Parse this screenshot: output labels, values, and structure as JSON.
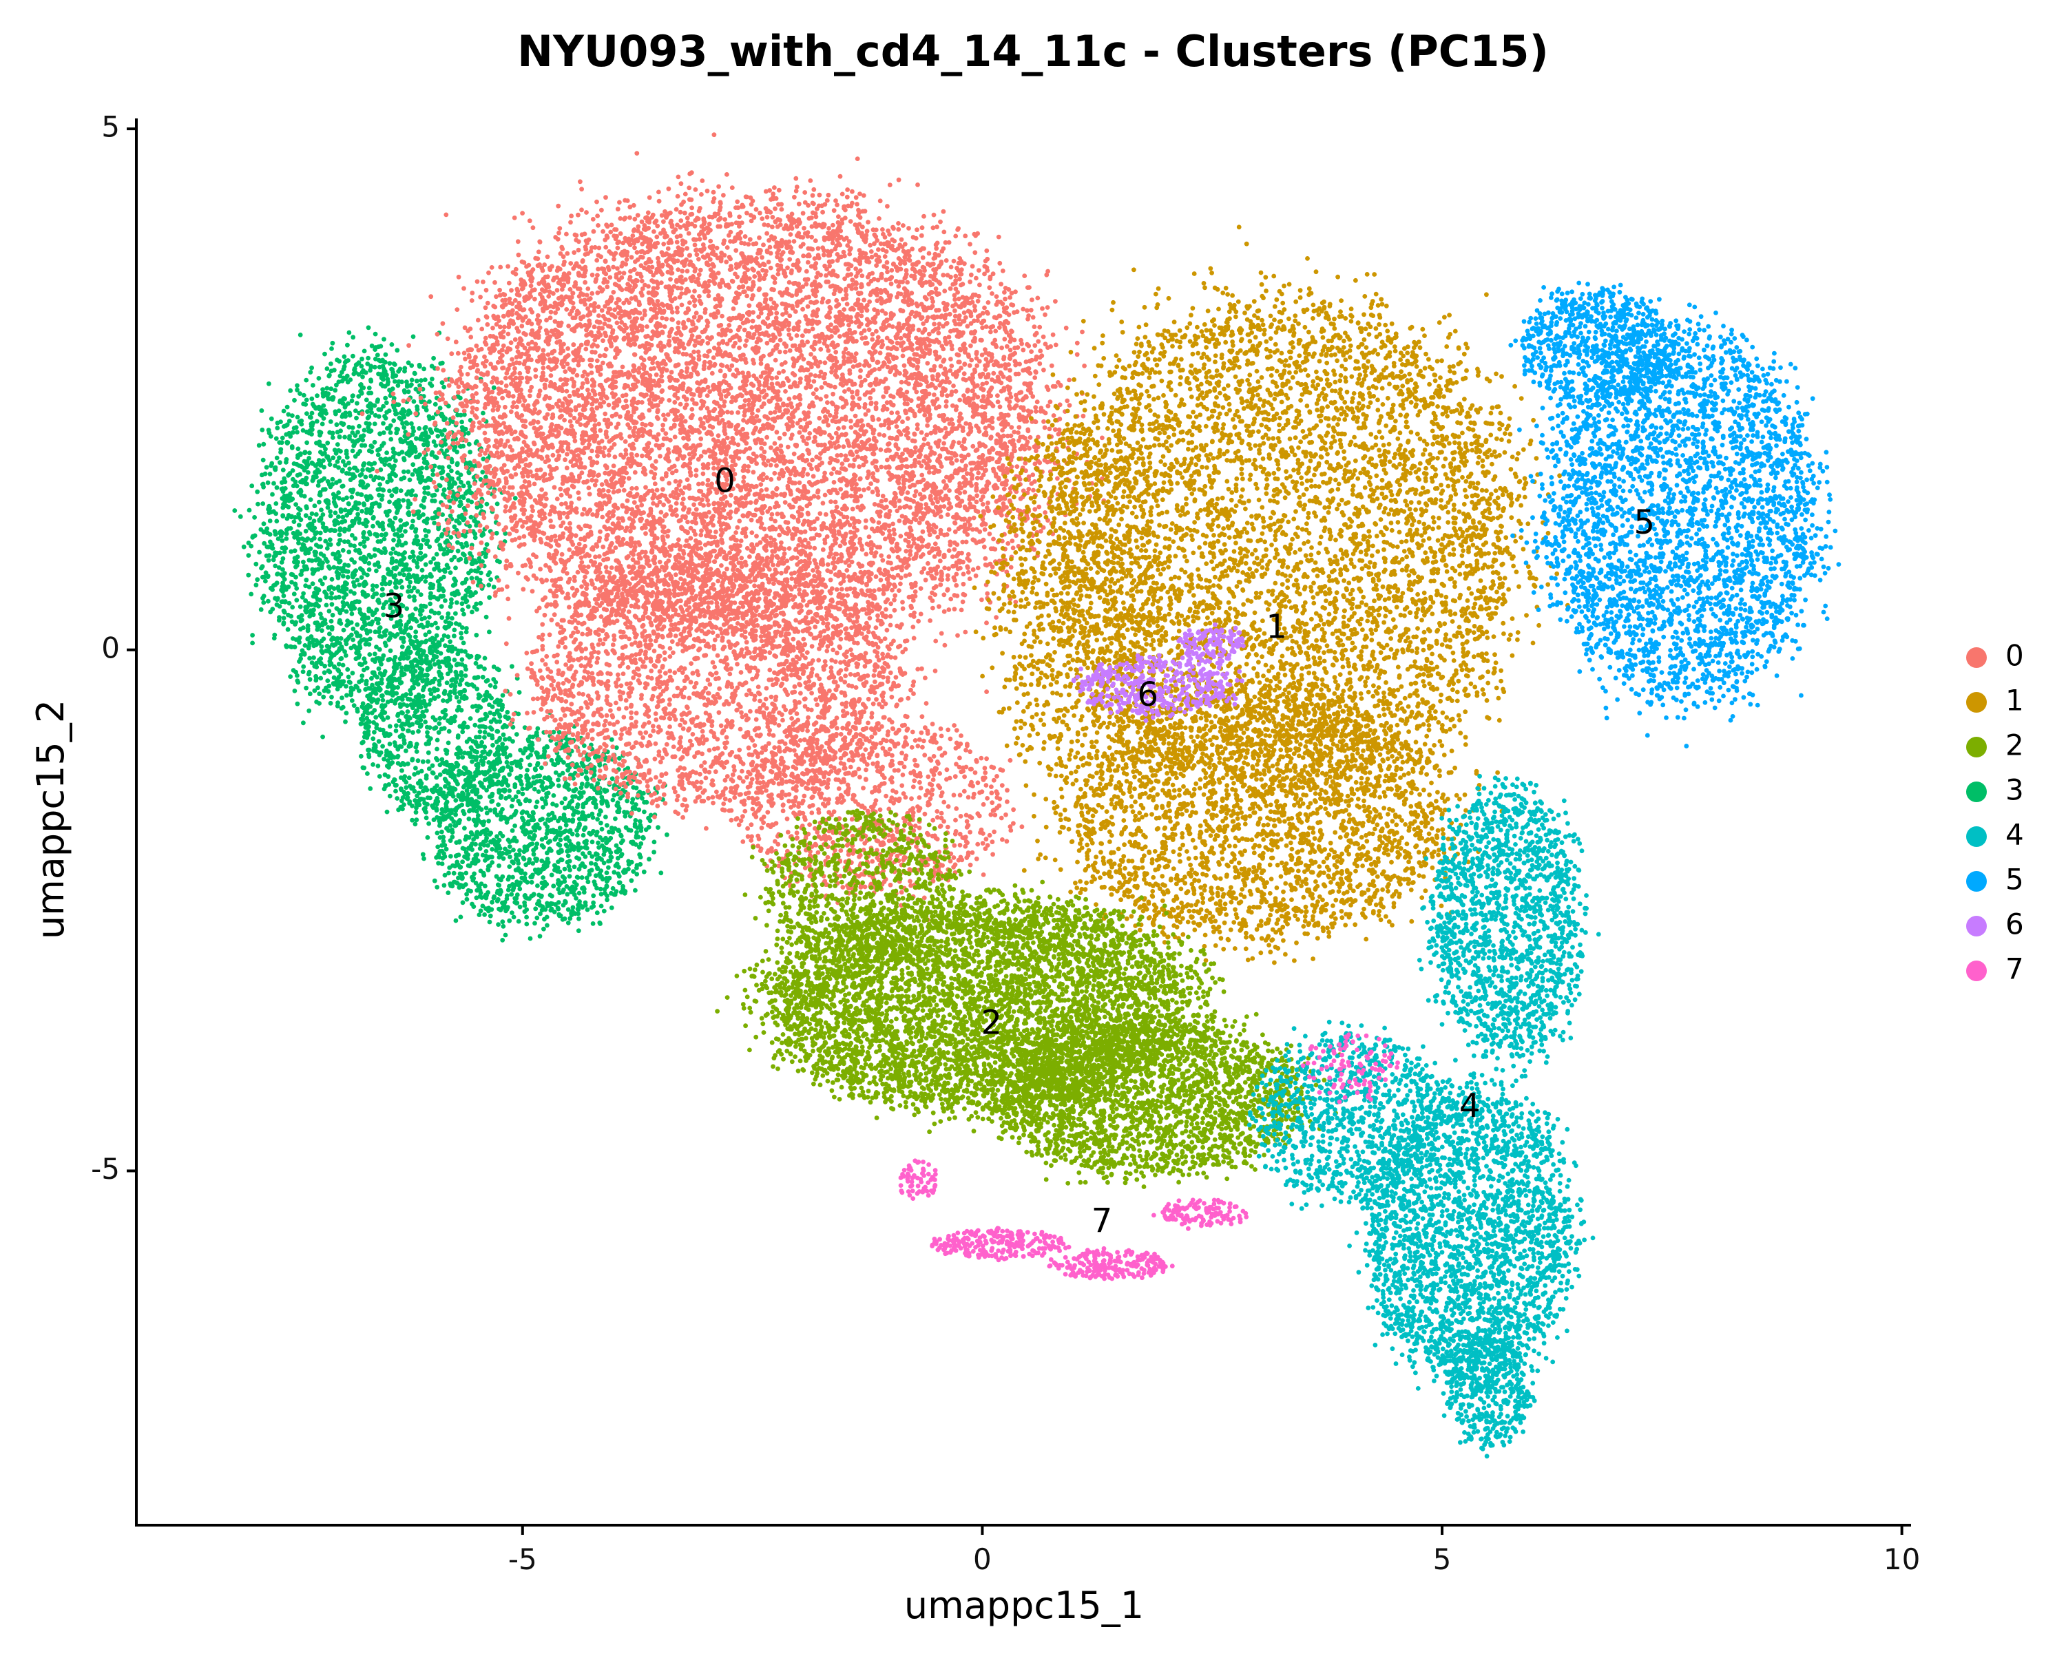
{
  "chart_data": {
    "type": "scatter",
    "title": "NYU093_with_cd4_14_11c - Clusters (PC15)",
    "xlabel": "umappc15_1",
    "ylabel": "umappc15_2",
    "xlim": [
      -9.2,
      10.1
    ],
    "ylim": [
      -8.4,
      5.1
    ],
    "x_ticks": [
      {
        "value": -5,
        "label": "-5"
      },
      {
        "value": 0,
        "label": "0"
      },
      {
        "value": 5,
        "label": "5"
      },
      {
        "value": 10,
        "label": "10"
      }
    ],
    "y_ticks": [
      {
        "value": -5,
        "label": "-5"
      },
      {
        "value": 0,
        "label": "0"
      },
      {
        "value": 5,
        "label": "5"
      }
    ],
    "legend_position": "right",
    "series": [
      {
        "name": "0",
        "color": "#F8766D",
        "label_position": [
          -2.8,
          1.6
        ]
      },
      {
        "name": "1",
        "color": "#CD9600",
        "label_position": [
          3.2,
          0.2
        ]
      },
      {
        "name": "2",
        "color": "#7CAE00",
        "label_position": [
          0.1,
          -3.6
        ]
      },
      {
        "name": "3",
        "color": "#00BE67",
        "label_position": [
          -6.4,
          0.4
        ]
      },
      {
        "name": "4",
        "color": "#00BFC4",
        "label_position": [
          5.3,
          -4.4
        ]
      },
      {
        "name": "5",
        "color": "#00A9FF",
        "label_position": [
          7.2,
          1.2
        ]
      },
      {
        "name": "6",
        "color": "#C77CFF",
        "label_position": [
          1.8,
          -0.45
        ]
      },
      {
        "name": "7",
        "color": "#FF61CC",
        "label_position": [
          1.3,
          -5.5
        ]
      }
    ],
    "clusters": [
      {
        "name": "3",
        "blobs": [
          {
            "cx": -6.6,
            "cy": 1.1,
            "rx": 1.35,
            "ry": 1.9,
            "n": 2600
          },
          {
            "cx": -4.8,
            "cy": -1.7,
            "rx": 1.3,
            "ry": 1.0,
            "n": 1400
          },
          {
            "cx": -5.9,
            "cy": -0.8,
            "rx": 0.9,
            "ry": 0.9,
            "n": 700
          }
        ]
      },
      {
        "name": "0",
        "blobs": [
          {
            "cx": -2.5,
            "cy": 2.2,
            "rx": 3.5,
            "ry": 2.3,
            "n": 9000
          },
          {
            "cx": -2.9,
            "cy": -0.3,
            "rx": 2.2,
            "ry": 1.3,
            "n": 2400
          },
          {
            "cx": -1.2,
            "cy": -1.5,
            "rx": 1.6,
            "ry": 0.9,
            "n": 1000
          }
        ]
      },
      {
        "name": "1",
        "blobs": [
          {
            "cx": 3.3,
            "cy": 1.0,
            "rx": 2.8,
            "ry": 2.6,
            "n": 5500
          },
          {
            "cx": 3.0,
            "cy": -1.6,
            "rx": 2.3,
            "ry": 1.3,
            "n": 2600
          },
          {
            "cx": 1.0,
            "cy": 0.5,
            "rx": 1.0,
            "ry": 1.8,
            "n": 900
          }
        ]
      },
      {
        "name": "2",
        "blobs": [
          {
            "cx": 0.0,
            "cy": -3.4,
            "rx": 2.5,
            "ry": 1.1,
            "n": 5000
          },
          {
            "cx": 1.8,
            "cy": -4.3,
            "rx": 1.8,
            "ry": 0.8,
            "n": 2200
          },
          {
            "cx": -1.3,
            "cy": -2.3,
            "rx": 1.1,
            "ry": 0.8,
            "n": 800
          }
        ]
      },
      {
        "name": "4",
        "blobs": [
          {
            "cx": 5.3,
            "cy": -5.6,
            "rx": 1.2,
            "ry": 1.5,
            "n": 2400
          },
          {
            "cx": 5.7,
            "cy": -2.6,
            "rx": 0.9,
            "ry": 1.4,
            "n": 1500
          },
          {
            "cx": 4.0,
            "cy": -4.5,
            "rx": 1.1,
            "ry": 0.9,
            "n": 900
          },
          {
            "cx": 5.5,
            "cy": -7.1,
            "rx": 0.5,
            "ry": 0.6,
            "n": 400
          }
        ]
      },
      {
        "name": "5",
        "blobs": [
          {
            "cx": 7.6,
            "cy": 1.3,
            "rx": 1.6,
            "ry": 1.9,
            "n": 3200
          },
          {
            "cx": 6.7,
            "cy": 2.9,
            "rx": 0.9,
            "ry": 0.6,
            "n": 700
          }
        ]
      },
      {
        "name": "6",
        "blobs": [
          {
            "cx": 1.9,
            "cy": -0.35,
            "rx": 0.9,
            "ry": 0.3,
            "n": 380
          },
          {
            "cx": 2.5,
            "cy": 0.05,
            "rx": 0.4,
            "ry": 0.2,
            "n": 120
          }
        ]
      },
      {
        "name": "7",
        "blobs": [
          {
            "cx": 0.2,
            "cy": -5.7,
            "rx": 0.8,
            "ry": 0.15,
            "n": 220
          },
          {
            "cx": 1.4,
            "cy": -5.9,
            "rx": 0.7,
            "ry": 0.15,
            "n": 200
          },
          {
            "cx": 2.4,
            "cy": -5.4,
            "rx": 0.5,
            "ry": 0.15,
            "n": 120
          },
          {
            "cx": -0.7,
            "cy": -5.1,
            "rx": 0.25,
            "ry": 0.2,
            "n": 60
          },
          {
            "cx": 4.0,
            "cy": -4.0,
            "rx": 0.5,
            "ry": 0.35,
            "n": 90
          }
        ]
      }
    ]
  }
}
